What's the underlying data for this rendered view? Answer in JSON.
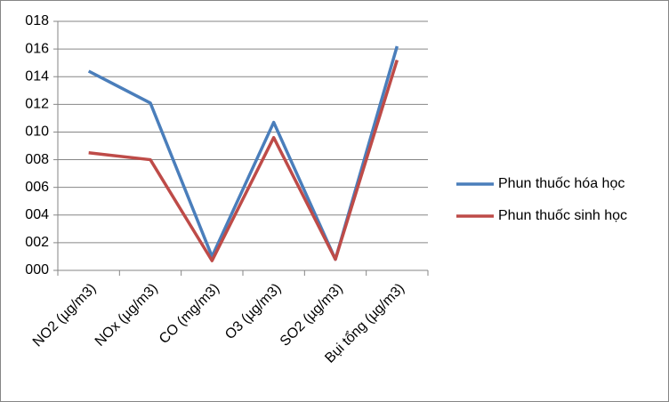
{
  "chart_data": {
    "type": "line",
    "categories": [
      "NO2 (µg/m3)",
      "NOx (µg/m3)",
      "CO (mg/m3)",
      "O3 (µg/m3)",
      "SO2 (µg/m3)",
      "Bụi tổng (µg/m3)"
    ],
    "series": [
      {
        "name": "Phun thuốc hóa học",
        "color": "#4a7ebb",
        "values": [
          14.4,
          12.1,
          1.0,
          10.7,
          0.8,
          16.2
        ]
      },
      {
        "name": "Phun thuốc sinh học",
        "color": "#be4b48",
        "values": [
          8.5,
          8.0,
          0.7,
          9.6,
          0.8,
          15.2
        ]
      }
    ],
    "ylim": [
      0,
      18
    ],
    "yticks": [
      {
        "value": 0,
        "label": "000"
      },
      {
        "value": 2,
        "label": "002"
      },
      {
        "value": 4,
        "label": "004"
      },
      {
        "value": 6,
        "label": "006"
      },
      {
        "value": 8,
        "label": "008"
      },
      {
        "value": 10,
        "label": "010"
      },
      {
        "value": 12,
        "label": "012"
      },
      {
        "value": 14,
        "label": "014"
      },
      {
        "value": 16,
        "label": "016"
      },
      {
        "value": 18,
        "label": "018"
      }
    ],
    "grid": true,
    "legend": "right"
  }
}
